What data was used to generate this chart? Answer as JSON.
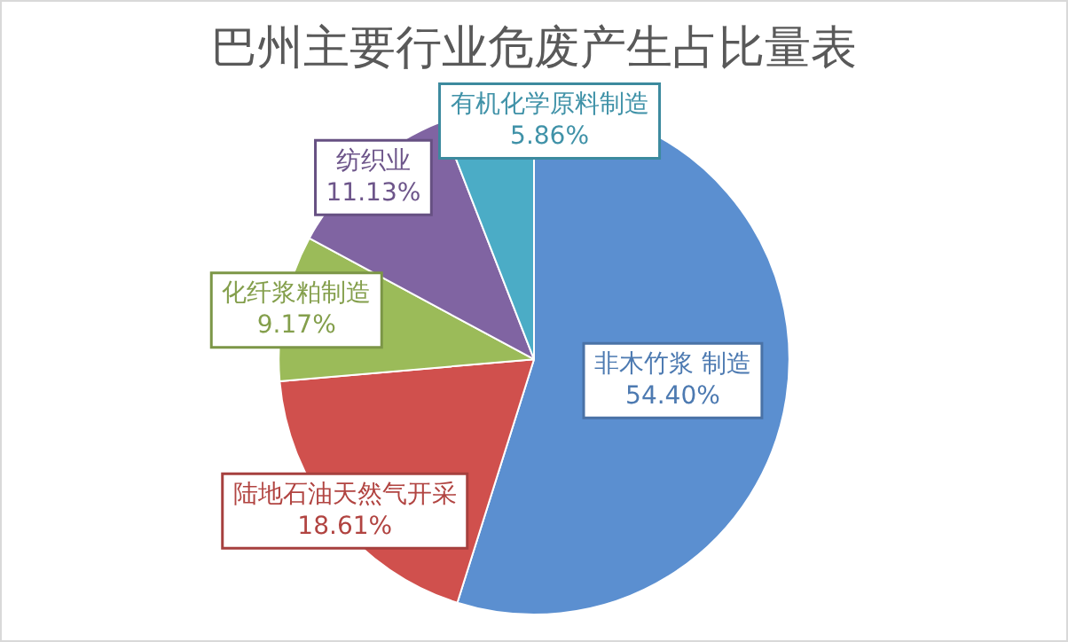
{
  "chart_data": {
    "type": "pie",
    "title": "巴州主要行业危废产生占比量表",
    "categories": [
      "非木竹浆 制造",
      "陆地石油天然气开采",
      "化纤浆粕制造",
      "纺织业",
      "有机化学原料制造"
    ],
    "values": [
      54.4,
      18.61,
      9.17,
      11.13,
      5.86
    ],
    "value_labels": [
      "54.40%",
      "18.61%",
      "9.17%",
      "11.13%",
      "5.86%"
    ],
    "colors": [
      "#5b8fd0",
      "#d0504d",
      "#9bbb59",
      "#8064a2",
      "#4bacc6"
    ],
    "legend": false
  }
}
